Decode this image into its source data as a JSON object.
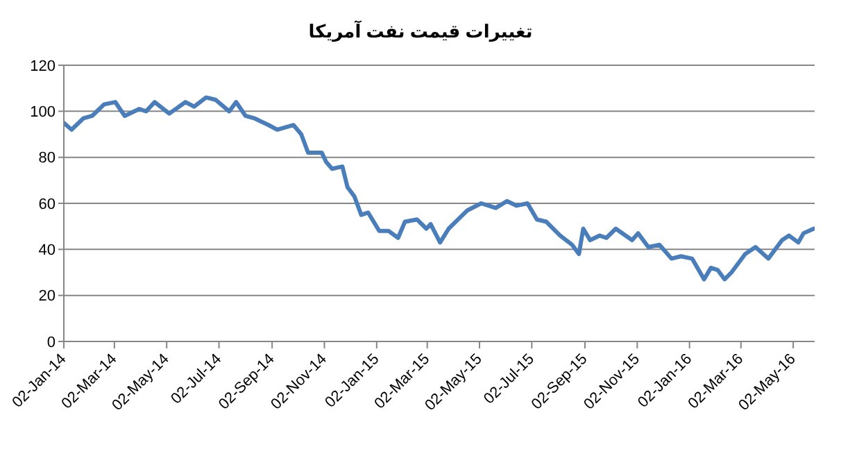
{
  "chart_data": {
    "type": "line",
    "title": "تغییرات قیمت نفت آمریکا",
    "x": [
      "2014-01-02",
      "2014-01-11",
      "2014-01-25",
      "2014-02-04",
      "2014-02-18",
      "2014-03-03",
      "2014-03-14",
      "2014-03-31",
      "2014-04-08",
      "2014-04-18",
      "2014-05-05",
      "2014-05-24",
      "2014-06-03",
      "2014-06-17",
      "2014-06-28",
      "2014-07-14",
      "2014-07-22",
      "2014-08-02",
      "2014-08-12",
      "2014-08-29",
      "2014-09-08",
      "2014-09-27",
      "2014-10-06",
      "2014-10-14",
      "2014-10-30",
      "2014-11-04",
      "2014-11-11",
      "2014-11-23",
      "2014-11-29",
      "2014-12-07",
      "2014-12-15",
      "2014-12-23",
      "2015-01-05",
      "2015-01-16",
      "2015-01-27",
      "2015-02-04",
      "2015-02-18",
      "2015-03-01",
      "2015-03-06",
      "2015-03-17",
      "2015-03-27",
      "2015-04-07",
      "2015-04-18",
      "2015-05-04",
      "2015-05-21",
      "2015-06-03",
      "2015-06-14",
      "2015-06-27",
      "2015-07-08",
      "2015-07-19",
      "2015-08-04",
      "2015-08-18",
      "2015-08-26",
      "2015-08-31",
      "2015-09-08",
      "2015-09-19",
      "2015-09-27",
      "2015-10-08",
      "2015-10-27",
      "2015-11-03",
      "2015-11-15",
      "2015-11-28",
      "2015-12-12",
      "2015-12-23",
      "2016-01-05",
      "2016-01-19",
      "2016-01-27",
      "2016-02-04",
      "2016-02-12",
      "2016-02-20",
      "2016-03-07",
      "2016-03-19",
      "2016-04-03",
      "2016-04-19",
      "2016-04-27",
      "2016-05-08",
      "2016-05-14",
      "2016-05-26"
    ],
    "series": [
      {
        "color": "#4a7ebb",
        "values": [
          95,
          92,
          97,
          98,
          103,
          104,
          98,
          101,
          100,
          104,
          99,
          104,
          102,
          106,
          105,
          100,
          104,
          98,
          97,
          94,
          92,
          94,
          90,
          82,
          82,
          78,
          75,
          76,
          67,
          63,
          55,
          56,
          48,
          48,
          45,
          52,
          53,
          49,
          51,
          43,
          49,
          53,
          57,
          60,
          58,
          61,
          59,
          60,
          53,
          52,
          46,
          42,
          38,
          49,
          44,
          46,
          45,
          49,
          44,
          47,
          41,
          42,
          36,
          37,
          36,
          27,
          32,
          31,
          27,
          30,
          38,
          41,
          36,
          44,
          46,
          43,
          47,
          49
        ]
      }
    ],
    "xlim": [
      "2014-01-02",
      "2016-05-27"
    ],
    "xticks": [
      {
        "value": "2014-01-02",
        "label": "02-Jan-14"
      },
      {
        "value": "2014-03-02",
        "label": "02-Mar-14"
      },
      {
        "value": "2014-05-02",
        "label": "02-May-14"
      },
      {
        "value": "2014-07-02",
        "label": "02-Jul-14"
      },
      {
        "value": "2014-09-02",
        "label": "02-Sep-14"
      },
      {
        "value": "2014-11-02",
        "label": "02-Nov-14"
      },
      {
        "value": "2015-01-02",
        "label": "02-Jan-15"
      },
      {
        "value": "2015-03-02",
        "label": "02-Mar-15"
      },
      {
        "value": "2015-05-02",
        "label": "02-May-15"
      },
      {
        "value": "2015-07-02",
        "label": "02-Jul-15"
      },
      {
        "value": "2015-09-02",
        "label": "02-Sep-15"
      },
      {
        "value": "2015-11-02",
        "label": "02-Nov-15"
      },
      {
        "value": "2016-01-02",
        "label": "02-Jan-16"
      },
      {
        "value": "2016-03-02",
        "label": "02-Mar-16"
      },
      {
        "value": "2016-05-02",
        "label": "02-May-16"
      }
    ],
    "ylim": [
      0,
      120
    ],
    "yticks": [
      0,
      20,
      40,
      60,
      80,
      100,
      120
    ],
    "grid": "y",
    "legend": false,
    "marker": "none",
    "line_style": "solid"
  }
}
